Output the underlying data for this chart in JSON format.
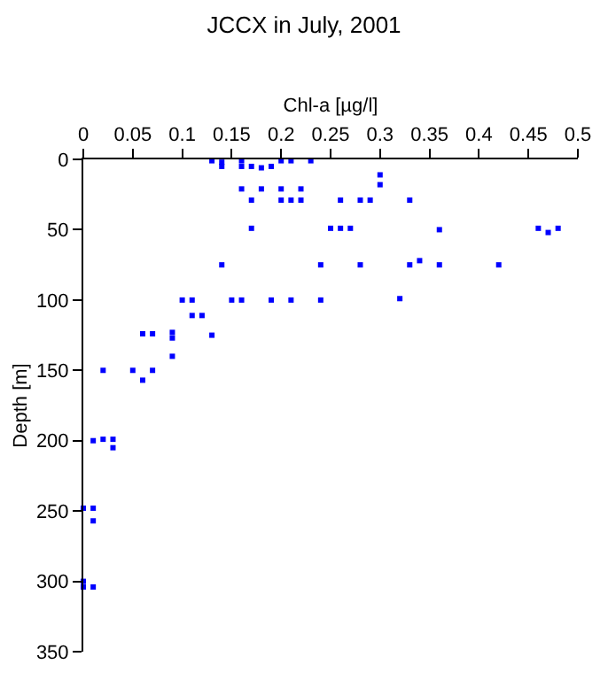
{
  "chart_data": {
    "type": "scatter",
    "title": "JCCX in July, 2001",
    "xlabel": "Chl-a [µg/l]",
    "ylabel": "Depth [m]",
    "xlim": [
      0,
      0.5
    ],
    "xticks": [
      0,
      0.05,
      0.1,
      0.15,
      0.2,
      0.25,
      0.3,
      0.35,
      0.4,
      0.45,
      0.5
    ],
    "ylim": [
      350,
      0
    ],
    "yticks": [
      0,
      50,
      100,
      150,
      200,
      250,
      300,
      350
    ],
    "marker": "square",
    "series": [
      {
        "color": "#0000ff",
        "x": [
          0.13,
          0.14,
          0.16,
          0.2,
          0.21,
          0.23,
          0.14,
          0.16,
          0.17,
          0.18,
          0.19,
          0.3,
          0.3,
          0.16,
          0.18,
          0.2,
          0.22,
          0.17,
          0.2,
          0.21,
          0.22,
          0.26,
          0.28,
          0.29,
          0.33,
          0.17,
          0.25,
          0.26,
          0.27,
          0.36,
          0.46,
          0.47,
          0.48,
          0.14,
          0.24,
          0.28,
          0.33,
          0.34,
          0.36,
          0.42,
          0.1,
          0.11,
          0.15,
          0.16,
          0.19,
          0.21,
          0.24,
          0.32,
          0.11,
          0.12,
          0.06,
          0.07,
          0.09,
          0.09,
          0.13,
          0.09,
          0.02,
          0.05,
          0.07,
          0.06,
          0.01,
          0.02,
          0.03,
          0.03,
          0,
          0.01,
          0.01,
          0,
          0,
          0.01
        ],
        "values": [
          1,
          2,
          1,
          1,
          1,
          1,
          5,
          5,
          5,
          6,
          5,
          11,
          18,
          21,
          21,
          21,
          21,
          29,
          29,
          29,
          29,
          29,
          29,
          29,
          29,
          49,
          49,
          49,
          49,
          50,
          49,
          52,
          49,
          75,
          75,
          75,
          75,
          72,
          75,
          75,
          100,
          100,
          100,
          100,
          100,
          100,
          100,
          99,
          111,
          111,
          124,
          124,
          123,
          127,
          125,
          140,
          150,
          150,
          150,
          157,
          200,
          199,
          199,
          205,
          248,
          248,
          257,
          300,
          304,
          304
        ]
      }
    ]
  }
}
